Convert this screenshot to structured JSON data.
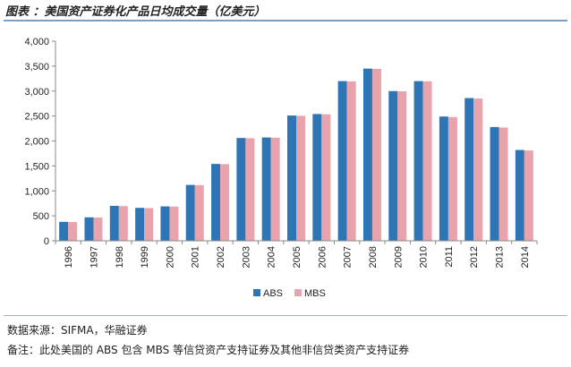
{
  "title": "图表  ：美国资产证券化产品日均成交量（亿美元）",
  "colors": {
    "abs": "#2e75b6",
    "mbs": "#e8a3ad",
    "axis": "#888888",
    "rule": "#7a9fc3"
  },
  "chart_data": {
    "type": "bar",
    "title": "美国资产证券化产品日均成交量（亿美元）",
    "xlabel": "",
    "ylabel": "",
    "ylim": [
      0,
      4000
    ],
    "yticks": [
      "0",
      "500",
      "1,000",
      "1,500",
      "2,000",
      "2,500",
      "3,000",
      "3,500",
      "4,000"
    ],
    "categories": [
      "1996",
      "1997",
      "1998",
      "1999",
      "2000",
      "2001",
      "2002",
      "2003",
      "2004",
      "2005",
      "2006",
      "2007",
      "2008",
      "2009",
      "2010",
      "2011",
      "2012",
      "2013",
      "2014"
    ],
    "series": [
      {
        "name": "ABS",
        "values": [
          380,
          470,
          700,
          660,
          690,
          1120,
          1540,
          2060,
          2070,
          2510,
          2540,
          3200,
          3450,
          3000,
          3200,
          2490,
          2860,
          2280,
          1820
        ]
      },
      {
        "name": "MBS",
        "values": [
          375,
          465,
          695,
          655,
          685,
          1115,
          1535,
          2055,
          2065,
          2505,
          2535,
          3195,
          3445,
          2995,
          3195,
          2480,
          2850,
          2270,
          1810
        ]
      }
    ],
    "legend": "bottom-center"
  },
  "source": "数据来源：SIFMA，华融证券",
  "remark": "备注：此处美国的 ABS 包含 MBS 等信贷资产支持证券及其他非信贷类资产支持证券"
}
